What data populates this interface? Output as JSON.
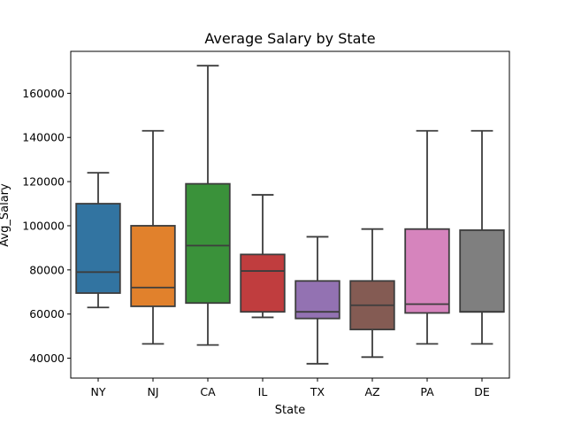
{
  "chart_data": {
    "type": "box",
    "title": "Average Salary by State",
    "xlabel": "State",
    "ylabel": "Avg_Salary",
    "categories": [
      "NY",
      "NJ",
      "CA",
      "IL",
      "TX",
      "AZ",
      "PA",
      "DE"
    ],
    "boxes": [
      {
        "min": 63000,
        "q1": 69500,
        "median": 79000,
        "q3": 110000,
        "max": 124000
      },
      {
        "min": 46500,
        "q1": 63500,
        "median": 72000,
        "q3": 100000,
        "max": 143000
      },
      {
        "min": 46000,
        "q1": 65000,
        "median": 91000,
        "q3": 119000,
        "max": 172500
      },
      {
        "min": 58500,
        "q1": 61000,
        "median": 79500,
        "q3": 87000,
        "max": 114000
      },
      {
        "min": 37500,
        "q1": 58000,
        "median": 61000,
        "q3": 75000,
        "max": 95000
      },
      {
        "min": 40500,
        "q1": 53000,
        "median": 64000,
        "q3": 75000,
        "max": 98500
      },
      {
        "min": 46500,
        "q1": 60500,
        "median": 64500,
        "q3": 98500,
        "max": 143000
      },
      {
        "min": 46500,
        "q1": 61000,
        "median": 61000,
        "q3": 98000,
        "max": 143000
      }
    ],
    "colors": [
      "#3274a1",
      "#e1812c",
      "#3a923a",
      "#c03d3e",
      "#9372b2",
      "#845b53",
      "#d684bd",
      "#7f7f7f"
    ],
    "yticks": [
      40000,
      60000,
      80000,
      100000,
      120000,
      140000,
      160000
    ],
    "ylim": [
      31000,
      179000
    ],
    "grid": false,
    "legend": "none"
  }
}
